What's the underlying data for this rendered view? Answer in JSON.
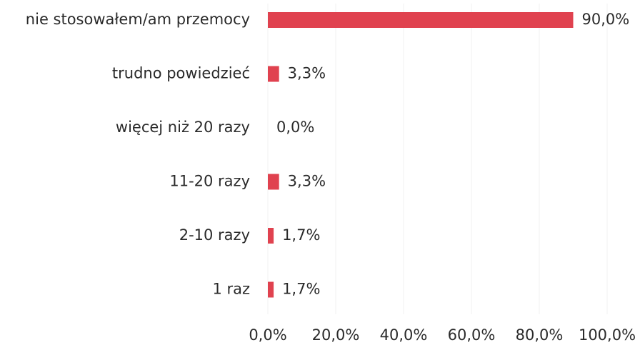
{
  "chart_data": {
    "type": "bar",
    "orientation": "horizontal",
    "categories": [
      "nie stosowałem/am przemocy",
      "trudno powiedzieć",
      "więcej niż 20 razy",
      "11-20 razy",
      "2-10 razy",
      "1 raz"
    ],
    "values": [
      90.0,
      3.3,
      0.0,
      3.3,
      1.7,
      1.7
    ],
    "value_labels": [
      "90,0%",
      "3,3%",
      "0,0%",
      "3,3%",
      "1,7%",
      "1,7%"
    ],
    "color": "#e0424f",
    "xlim": [
      0,
      100
    ],
    "xticks": [
      {
        "value": 0,
        "label": "0,0%"
      },
      {
        "value": 20,
        "label": "20,0%"
      },
      {
        "value": 40,
        "label": "40,0%"
      },
      {
        "value": 60,
        "label": "60,0%"
      },
      {
        "value": 80,
        "label": "80,0%"
      },
      {
        "value": 100,
        "label": "100,0%"
      }
    ],
    "grid": true
  }
}
